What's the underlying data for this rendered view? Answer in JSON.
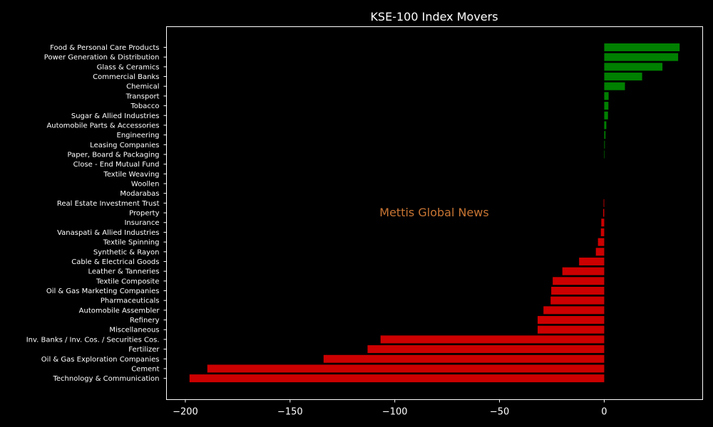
{
  "chart_data": {
    "type": "bar",
    "orientation": "horizontal",
    "title": "KSE-100 Index Movers",
    "xlabel": "",
    "ylabel": "",
    "xlim": [
      -209,
      47
    ],
    "xticks": [
      -200,
      -150,
      -100,
      -50,
      0
    ],
    "xtick_labels": [
      "−200",
      "−150",
      "−100",
      "−50",
      "0"
    ],
    "grid": false,
    "categories": [
      "Food & Personal Care Products",
      "Power Generation & Distribution",
      "Glass & Ceramics",
      "Commercial Banks",
      "Chemical",
      "Transport",
      "Tobacco",
      "Sugar & Allied Industries",
      "Automobile Parts & Accessories",
      "Engineering",
      "Leasing Companies",
      "Paper, Board & Packaging",
      "Close - End Mutual Fund",
      "Textile Weaving",
      "Woollen",
      "Modarabas",
      "Real Estate Investment Trust",
      "Property",
      "Insurance",
      "Vanaspati & Allied Industries",
      "Textile Spinning",
      "Synthetic & Rayon",
      "Cable & Electrical Goods",
      "Leather & Tanneries",
      "Textile Composite",
      "Oil & Gas Marketing Companies",
      "Pharmaceuticals",
      "Automobile Assembler",
      "Refinery",
      "Miscellaneous",
      "Inv. Banks / Inv. Cos. / Securities Cos.",
      "Fertilizer",
      "Oil & Gas Exploration Companies",
      "Cement",
      "Technology & Communication"
    ],
    "values": [
      36,
      35.3,
      27.8,
      18.1,
      9.9,
      2.1,
      2.0,
      1.8,
      1.0,
      0.6,
      0.3,
      0.2,
      0,
      0,
      0,
      0,
      -0.3,
      -0.5,
      -1.4,
      -1.6,
      -3.0,
      -4.0,
      -12.0,
      -20.0,
      -24.6,
      -25.3,
      -25.6,
      -29.0,
      -31.8,
      -31.8,
      -106.8,
      -113.0,
      -134.0,
      -189.5,
      -198.0
    ],
    "colors": {
      "positive": "#008000",
      "negative": "#cc0000",
      "background": "#000000",
      "axes": "#ffffff",
      "watermark": "#c87533"
    },
    "annotation": "Mettis Global News"
  }
}
